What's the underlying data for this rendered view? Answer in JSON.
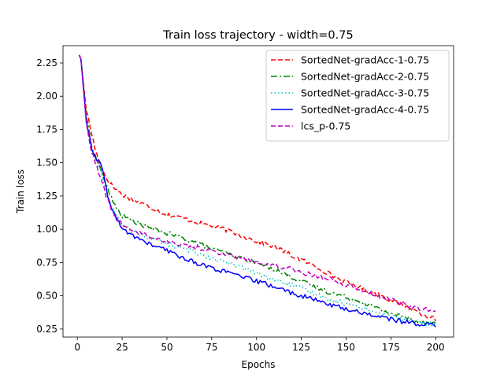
{
  "chart_data": {
    "type": "line",
    "title": "Train loss trajectory - width=0.75",
    "xlabel": "Epochs",
    "ylabel": "Train loss",
    "xlim": [
      -8,
      210
    ],
    "ylim": [
      0.19,
      2.38
    ],
    "xticks": [
      0,
      25,
      50,
      75,
      100,
      125,
      150,
      175,
      200
    ],
    "xtick_labels": [
      "0",
      "25",
      "50",
      "75",
      "100",
      "125",
      "150",
      "175",
      "200"
    ],
    "yticks": [
      0.25,
      0.5,
      0.75,
      1.0,
      1.25,
      1.5,
      1.75,
      2.0,
      2.25
    ],
    "ytick_labels": [
      "0.25",
      "0.50",
      "0.75",
      "1.00",
      "1.25",
      "1.50",
      "1.75",
      "2.00",
      "2.25"
    ],
    "grid": false,
    "legend_position": "top-right",
    "series": [
      {
        "name": "SortedNet-gradAcc-1-0.75",
        "color": "#ff0000",
        "style": "dashed",
        "anchors": [
          [
            1,
            2.31
          ],
          [
            2,
            2.28
          ],
          [
            5,
            1.9
          ],
          [
            8,
            1.72
          ],
          [
            10,
            1.6
          ],
          [
            13,
            1.47
          ],
          [
            17,
            1.37
          ],
          [
            20,
            1.32
          ],
          [
            25,
            1.26
          ],
          [
            30,
            1.23
          ],
          [
            40,
            1.17
          ],
          [
            50,
            1.11
          ],
          [
            60,
            1.08
          ],
          [
            70,
            1.04
          ],
          [
            80,
            1.01
          ],
          [
            90,
            0.96
          ],
          [
            100,
            0.91
          ],
          [
            110,
            0.87
          ],
          [
            120,
            0.8
          ],
          [
            130,
            0.74
          ],
          [
            140,
            0.67
          ],
          [
            150,
            0.6
          ],
          [
            160,
            0.55
          ],
          [
            170,
            0.5
          ],
          [
            180,
            0.44
          ],
          [
            190,
            0.38
          ],
          [
            200,
            0.32
          ]
        ]
      },
      {
        "name": "SortedNet-gradAcc-2-0.75",
        "color": "#008000",
        "style": "dashdot",
        "anchors": [
          [
            1,
            2.31
          ],
          [
            2,
            2.28
          ],
          [
            5,
            1.85
          ],
          [
            8,
            1.63
          ],
          [
            10,
            1.55
          ],
          [
            13,
            1.45
          ],
          [
            17,
            1.3
          ],
          [
            20,
            1.2
          ],
          [
            25,
            1.1
          ],
          [
            30,
            1.07
          ],
          [
            40,
            1.01
          ],
          [
            50,
            0.97
          ],
          [
            60,
            0.93
          ],
          [
            70,
            0.88
          ],
          [
            80,
            0.83
          ],
          [
            90,
            0.79
          ],
          [
            100,
            0.75
          ],
          [
            110,
            0.7
          ],
          [
            120,
            0.64
          ],
          [
            130,
            0.58
          ],
          [
            140,
            0.53
          ],
          [
            150,
            0.49
          ],
          [
            160,
            0.45
          ],
          [
            170,
            0.39
          ],
          [
            180,
            0.35
          ],
          [
            190,
            0.31
          ],
          [
            200,
            0.29
          ]
        ]
      },
      {
        "name": "SortedNet-gradAcc-3-0.75",
        "color": "#00bfbf",
        "style": "dotted",
        "anchors": [
          [
            1,
            2.31
          ],
          [
            2,
            2.28
          ],
          [
            5,
            1.83
          ],
          [
            8,
            1.62
          ],
          [
            10,
            1.53
          ],
          [
            13,
            1.45
          ],
          [
            17,
            1.25
          ],
          [
            20,
            1.15
          ],
          [
            25,
            1.02
          ],
          [
            30,
            0.99
          ],
          [
            40,
            0.94
          ],
          [
            50,
            0.89
          ],
          [
            60,
            0.85
          ],
          [
            70,
            0.81
          ],
          [
            80,
            0.76
          ],
          [
            90,
            0.72
          ],
          [
            100,
            0.67
          ],
          [
            110,
            0.62
          ],
          [
            120,
            0.58
          ],
          [
            130,
            0.53
          ],
          [
            140,
            0.48
          ],
          [
            150,
            0.44
          ],
          [
            160,
            0.41
          ],
          [
            170,
            0.36
          ],
          [
            180,
            0.33
          ],
          [
            190,
            0.3
          ],
          [
            200,
            0.28
          ]
        ]
      },
      {
        "name": "SortedNet-gradAcc-4-0.75",
        "color": "#0000ff",
        "style": "solid",
        "anchors": [
          [
            1,
            2.31
          ],
          [
            2,
            2.28
          ],
          [
            5,
            1.82
          ],
          [
            8,
            1.6
          ],
          [
            10,
            1.53
          ],
          [
            13,
            1.5
          ],
          [
            17,
            1.25
          ],
          [
            20,
            1.13
          ],
          [
            25,
            1.0
          ],
          [
            30,
            0.96
          ],
          [
            40,
            0.89
          ],
          [
            50,
            0.84
          ],
          [
            60,
            0.78
          ],
          [
            70,
            0.73
          ],
          [
            80,
            0.69
          ],
          [
            90,
            0.65
          ],
          [
            100,
            0.61
          ],
          [
            110,
            0.57
          ],
          [
            120,
            0.52
          ],
          [
            130,
            0.48
          ],
          [
            140,
            0.44
          ],
          [
            150,
            0.4
          ],
          [
            160,
            0.37
          ],
          [
            170,
            0.34
          ],
          [
            180,
            0.31
          ],
          [
            190,
            0.29
          ],
          [
            200,
            0.28
          ]
        ]
      },
      {
        "name": "lcs_p-0.75",
        "color": "#bf00bf",
        "style": "dashed",
        "anchors": [
          [
            1,
            2.31
          ],
          [
            2,
            2.28
          ],
          [
            5,
            1.8
          ],
          [
            8,
            1.58
          ],
          [
            10,
            1.5
          ],
          [
            13,
            1.38
          ],
          [
            17,
            1.22
          ],
          [
            20,
            1.12
          ],
          [
            25,
            1.03
          ],
          [
            30,
            1.0
          ],
          [
            40,
            0.95
          ],
          [
            50,
            0.91
          ],
          [
            60,
            0.88
          ],
          [
            70,
            0.85
          ],
          [
            80,
            0.82
          ],
          [
            90,
            0.79
          ],
          [
            100,
            0.76
          ],
          [
            110,
            0.73
          ],
          [
            120,
            0.7
          ],
          [
            130,
            0.66
          ],
          [
            140,
            0.63
          ],
          [
            150,
            0.58
          ],
          [
            160,
            0.54
          ],
          [
            170,
            0.49
          ],
          [
            180,
            0.45
          ],
          [
            190,
            0.4
          ],
          [
            200,
            0.39
          ]
        ]
      }
    ]
  }
}
